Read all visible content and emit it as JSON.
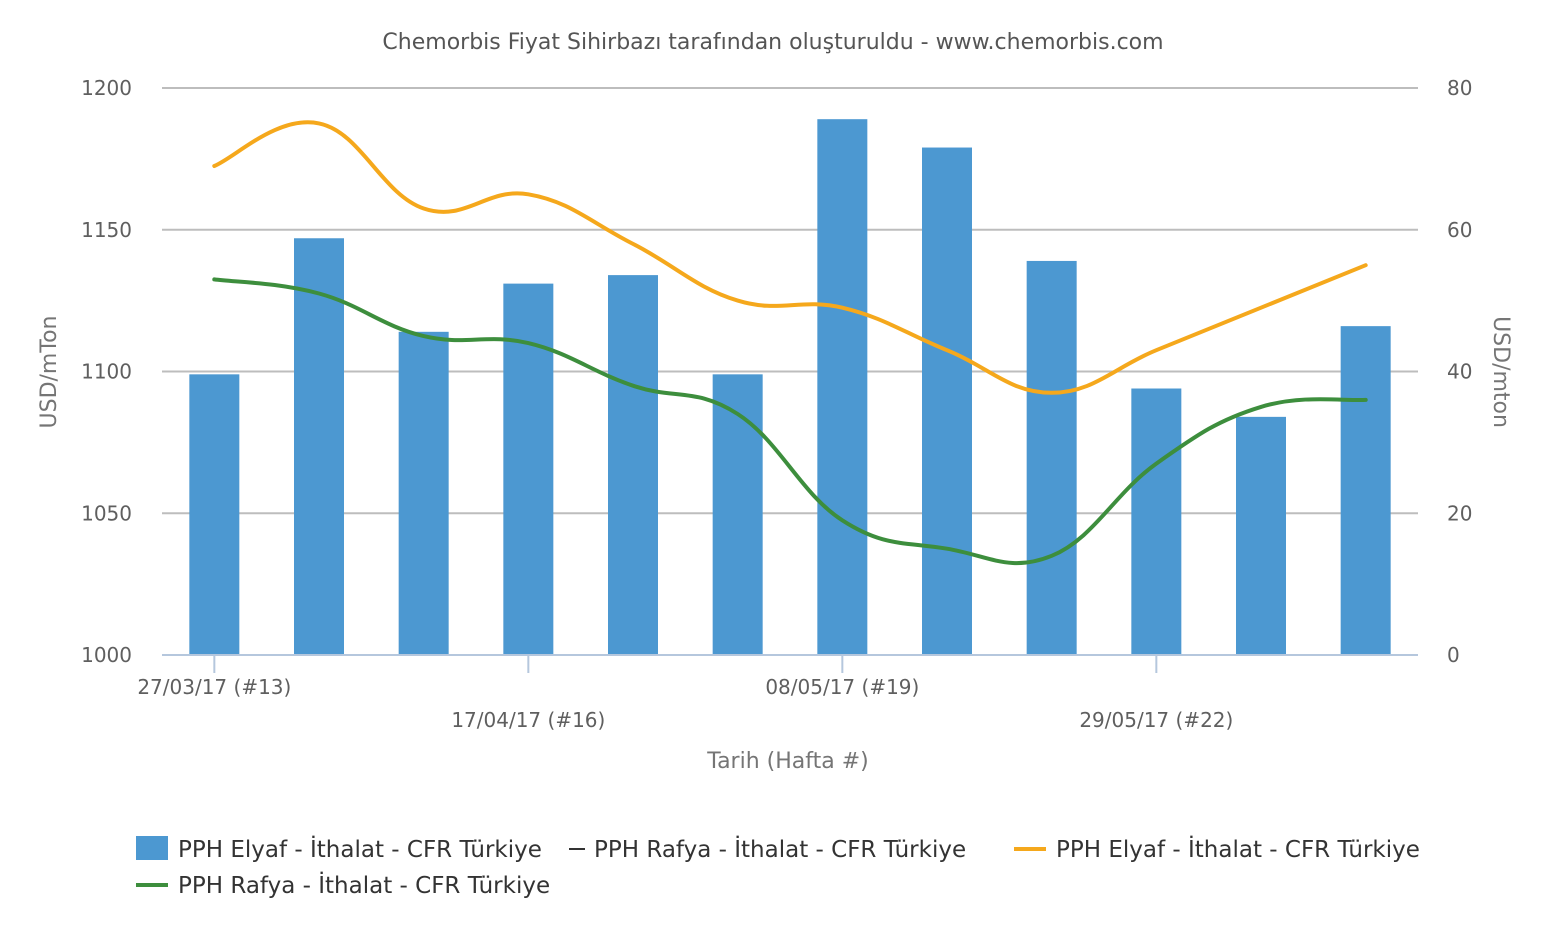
{
  "chart_data": {
    "type": "bar+line",
    "title": "Chemorbis Fiyat Sihirbazı tarafından oluşturuldu - www.chemorbis.com",
    "xlabel": "Tarih (Hafta #)",
    "ylabel_left": "USD/mTon",
    "ylabel_right": "USD/mton",
    "ylim_left": [
      1000,
      1200
    ],
    "ylim_right": [
      0,
      80
    ],
    "yticks_left": [
      "1000",
      "1050",
      "1100",
      "1150",
      "1200"
    ],
    "yticks_right": [
      "0",
      "20",
      "40",
      "60",
      "80"
    ],
    "x_tick_labels": [
      {
        "index": 0,
        "label": "27/03/17 (#13)"
      },
      {
        "index": 3,
        "label": "17/04/17 (#16)"
      },
      {
        "index": 6,
        "label": "08/05/17 (#19)"
      },
      {
        "index": 9,
        "label": "29/05/17 (#22)"
      }
    ],
    "grid": true,
    "legend_position": "bottom",
    "bar_series": {
      "name": "PPH Elyaf - İthalat - CFR Türkiye",
      "axis": "left",
      "color": "#4c98d1",
      "values": [
        1099,
        1147,
        1114,
        1131,
        1134,
        1099,
        1189,
        1179,
        1139,
        1094,
        1084,
        1116
      ]
    },
    "bar_companion_legend": "PPH Rafya - İthalat - CFR Türkiye",
    "line_series": [
      {
        "name": "PPH Elyaf - İthalat - CFR Türkiye",
        "axis": "right",
        "color": "#f5a81c",
        "values": [
          69,
          75,
          63,
          65,
          58,
          50,
          49,
          43,
          37,
          43,
          49,
          55
        ]
      },
      {
        "name": "PPH Rafya - İthalat - CFR Türkiye",
        "axis": "right",
        "color": "#3d8e3d",
        "values": [
          53,
          51,
          45,
          44,
          38,
          34,
          19,
          15,
          14,
          27,
          35,
          36
        ]
      }
    ]
  }
}
